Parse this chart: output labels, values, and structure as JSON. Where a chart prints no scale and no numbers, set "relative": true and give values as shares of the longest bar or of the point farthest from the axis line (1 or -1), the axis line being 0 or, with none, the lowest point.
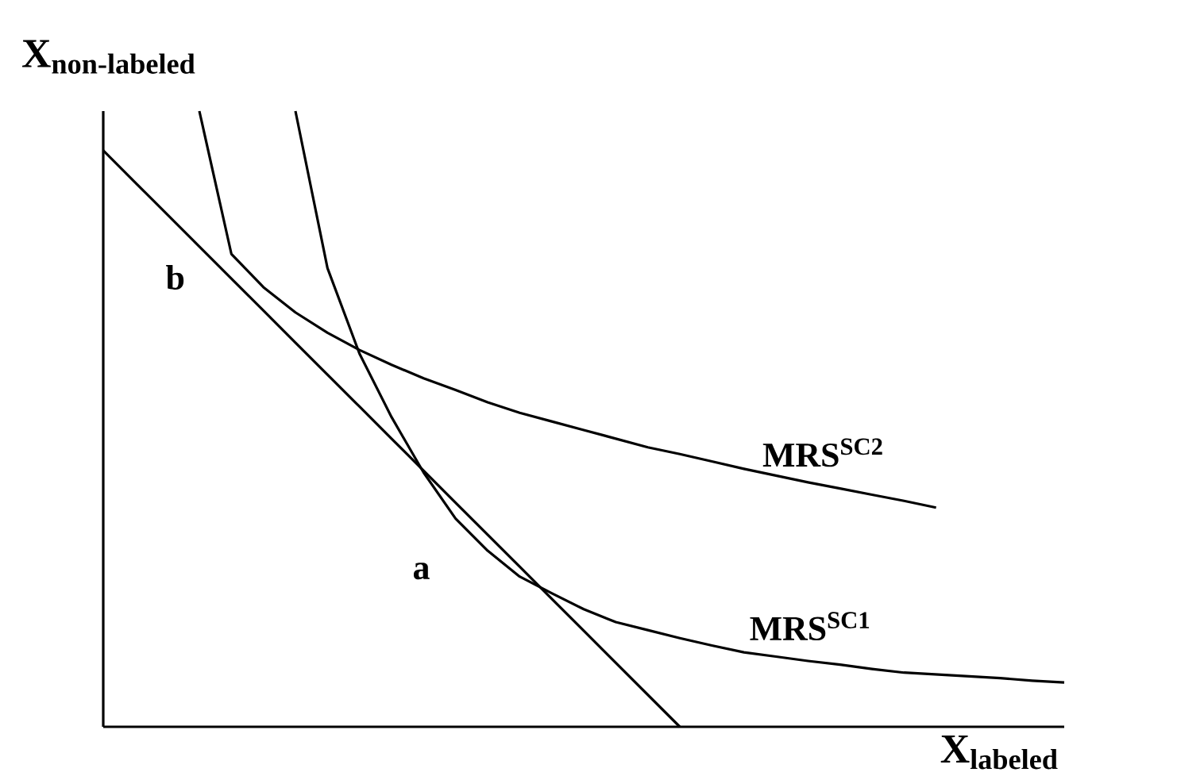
{
  "chart_data": {
    "type": "line",
    "relative": true,
    "xlabel": "\\text{X}_{\\text{labeled}}",
    "ylabel": "\\text{X}_{\\text{non-labeled}}",
    "categories": [
      null,
      null,
      null,
      null,
      null,
      null,
      null,
      null,
      null,
      null,
      null,
      null,
      null,
      null,
      null,
      null,
      null,
      null,
      null,
      null,
      null,
      null,
      null,
      null,
      null,
      null,
      null,
      null,
      null,
      null,
      null
    ],
    "series": [
      {
        "color": "#000000",
        "values": [
          0.936,
          0.884,
          0.832,
          0.78,
          0.728,
          0.676,
          0.624,
          0.572,
          0.52,
          0.468,
          0.416,
          0.364,
          0.312,
          0.26,
          0.208,
          0.156,
          0.104,
          0.052,
          0,
          null,
          null,
          null,
          null,
          null,
          null,
          null,
          null,
          null,
          null,
          null,
          null
        ]
      },
      {
        "name": "MRS$^{SC2}$",
        "color": "#000000",
        "values": [
          null,
          null,
          null,
          1.0,
          0.768,
          0.714,
          0.673,
          0.64,
          0.612,
          0.588,
          0.566,
          0.547,
          0.527,
          0.51,
          0.496,
          0.482,
          0.468,
          0.454,
          0.443,
          0.431,
          0.419,
          0.408,
          0.397,
          0.387,
          0.377,
          0.367,
          0.356,
          null,
          null,
          null,
          null
        ]
      },
      {
        "name": "MRS$^{SC1}$",
        "color": "#000000",
        "values": [
          null,
          null,
          null,
          null,
          null,
          null,
          1.0,
          0.745,
          0.606,
          0.503,
          0.413,
          0.338,
          0.286,
          0.244,
          0.217,
          0.191,
          0.17,
          0.157,
          0.144,
          0.132,
          0.121,
          0.114,
          0.107,
          0.101,
          0.094,
          0.088,
          0.085,
          0.082,
          0.079,
          0.075,
          0.072
        ]
      }
    ],
    "annotations": [
      "a",
      "b"
    ]
  }
}
